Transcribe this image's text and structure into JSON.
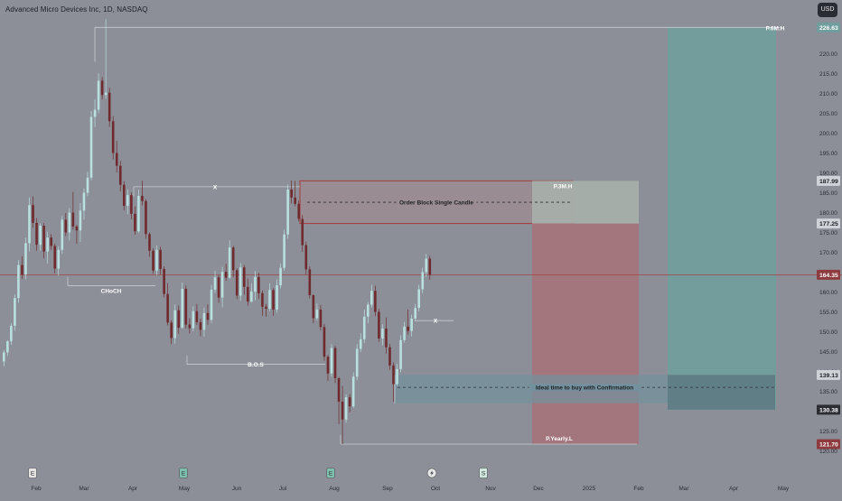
{
  "header": {
    "title": "Advanced Micro Devices Inc, 1D, NASDAQ",
    "currency_button": "USD"
  },
  "colors": {
    "background": "#8c8f98",
    "candle_up": "#b8e0df",
    "candle_down": "#6e2a2c",
    "order_block_fill": "#9a8d92",
    "order_block_border": "#a73a3a",
    "stop_zone": "#a5737a",
    "target_zone": "#6f9e9c",
    "gray_zone": "#a7afa9",
    "buy_zone": "#74909c",
    "level_line": "#c4c8cc",
    "price_line": "#a14242"
  },
  "chart_data": {
    "type": "candlestick",
    "symbol": "Advanced Micro Devices Inc, 1D, NASDAQ",
    "currency": "USD",
    "ylim": [
      113,
      232
    ],
    "y_ticks": [
      120,
      125,
      130,
      135,
      140,
      145,
      150,
      155,
      160,
      165,
      170,
      175,
      180,
      185,
      190,
      195,
      200,
      205,
      210,
      215,
      220,
      230
    ],
    "x_ticks": [
      "Feb",
      "Mar",
      "Apr",
      "May",
      "Jun",
      "Jul",
      "Aug",
      "Sep",
      "Oct",
      "Nov",
      "Dec",
      "2025",
      "Feb",
      "Mar",
      "Apr",
      "May"
    ],
    "price_tags": [
      {
        "value": "226.63",
        "style": "teal"
      },
      {
        "value": "187.99",
        "style": "light"
      },
      {
        "value": "177.25",
        "style": "light"
      },
      {
        "value": "164.35",
        "style": "red"
      },
      {
        "value": "139.13",
        "style": "light"
      },
      {
        "value": "130.38",
        "style": "dark"
      },
      {
        "value": "121.70",
        "style": "red"
      }
    ],
    "annotations": [
      {
        "label": "P.6M.H",
        "value": 226.63
      },
      {
        "label": "P.3M.H",
        "value": 187.99
      },
      {
        "label": "Order Block Single Candle",
        "value": 182.6
      },
      {
        "label": "X",
        "value": 186.5
      },
      {
        "label": "CHoCH",
        "value": 161.6
      },
      {
        "label": "B.O.S",
        "value": 141.8
      },
      {
        "label": "X",
        "value": 152.8
      },
      {
        "label": "Ideal time to buy with Confirmation",
        "value": 136.0
      },
      {
        "label": "P.Yearly.L",
        "value": 121.7
      }
    ],
    "zones": [
      {
        "name": "order-block",
        "from": 177.25,
        "to": 187.99
      },
      {
        "name": "stop-loss",
        "from": 121.7,
        "to": 177.25
      },
      {
        "name": "take-profit",
        "from": 130.38,
        "to": 226.63
      },
      {
        "name": "entry",
        "from": 132.0,
        "to": 139.13
      }
    ],
    "events_icons": [
      "earnings-icon",
      "dividend-icon",
      "dividend-icon",
      "flash-icon",
      "split-icon"
    ],
    "candles": [
      [
        142.5,
        145.4,
        141.3,
        144.8
      ],
      [
        144.8,
        147.9,
        143.9,
        147.6
      ],
      [
        147.6,
        152.2,
        146.7,
        151.5
      ],
      [
        151.5,
        159.4,
        150.2,
        158.5
      ],
      [
        158.5,
        168.1,
        157.3,
        166.8
      ],
      [
        166.8,
        169.0,
        163.3,
        164.4
      ],
      [
        164.4,
        173.7,
        163.2,
        172.3
      ],
      [
        172.3,
        183.8,
        170.2,
        181.9
      ],
      [
        181.9,
        184.1,
        176.2,
        177.4
      ],
      [
        177.4,
        178.6,
        170.4,
        171.9
      ],
      [
        171.9,
        177.3,
        170.4,
        176.7
      ],
      [
        176.7,
        177.4,
        168.5,
        170.2
      ],
      [
        170.2,
        175.2,
        167.2,
        173.7
      ],
      [
        173.7,
        174.6,
        170.6,
        171.6
      ],
      [
        171.6,
        172.2,
        164.7,
        165.9
      ],
      [
        165.9,
        171.5,
        164.1,
        170.6
      ],
      [
        170.6,
        179.1,
        169.6,
        178.2
      ],
      [
        178.2,
        179.9,
        174.1,
        175.0
      ],
      [
        175.0,
        181.1,
        173.0,
        180.0
      ],
      [
        180.0,
        185.2,
        175.7,
        176.5
      ],
      [
        176.5,
        176.9,
        172.2,
        175.5
      ],
      [
        175.5,
        182.4,
        172.6,
        180.5
      ],
      [
        180.5,
        186.1,
        178.2,
        185.0
      ],
      [
        185.0,
        190.3,
        184.1,
        188.8
      ],
      [
        188.8,
        205.6,
        188.1,
        204.1
      ],
      [
        204.1,
        208.5,
        201.5,
        205.9
      ],
      [
        205.9,
        215.0,
        205.0,
        213.2
      ],
      [
        213.2,
        214.1,
        208.5,
        209.6
      ],
      [
        209.6,
        228.7,
        208.7,
        210.2
      ],
      [
        210.2,
        211.4,
        201.6,
        203.0
      ],
      [
        203.0,
        204.3,
        193.4,
        195.0
      ],
      [
        195.0,
        198.1,
        190.1,
        191.8
      ],
      [
        191.8,
        193.0,
        185.3,
        187.0
      ],
      [
        187.0,
        187.9,
        180.6,
        181.7
      ],
      [
        181.7,
        185.8,
        179.6,
        184.4
      ],
      [
        184.4,
        185.1,
        178.3,
        179.7
      ],
      [
        179.7,
        181.6,
        174.4,
        175.3
      ],
      [
        175.3,
        185.8,
        175.0,
        184.2
      ],
      [
        184.2,
        188.0,
        181.8,
        182.9
      ],
      [
        182.9,
        183.4,
        173.4,
        174.6
      ],
      [
        174.6,
        175.0,
        168.9,
        170.4
      ],
      [
        170.4,
        171.0,
        164.6,
        165.4
      ],
      [
        165.4,
        171.7,
        164.3,
        170.6
      ],
      [
        170.6,
        171.4,
        164.5,
        165.8
      ],
      [
        165.8,
        166.5,
        158.6,
        159.5
      ],
      [
        159.5,
        162.3,
        151.6,
        152.3
      ],
      [
        152.3,
        152.9,
        146.9,
        148.4
      ],
      [
        148.4,
        156.9,
        147.0,
        155.4
      ],
      [
        155.4,
        156.6,
        149.5,
        151.0
      ],
      [
        151.0,
        162.4,
        150.7,
        160.8
      ],
      [
        160.8,
        161.6,
        150.8,
        151.8
      ],
      [
        151.8,
        153.4,
        149.6,
        150.9
      ],
      [
        150.9,
        156.4,
        150.1,
        155.2
      ],
      [
        155.2,
        157.0,
        151.7,
        152.4
      ],
      [
        152.4,
        153.3,
        148.9,
        150.5
      ],
      [
        150.5,
        156.1,
        148.8,
        154.7
      ],
      [
        154.7,
        156.9,
        151.8,
        153.0
      ],
      [
        153.0,
        161.8,
        152.2,
        160.6
      ],
      [
        160.6,
        165.3,
        159.8,
        163.7
      ],
      [
        163.7,
        164.2,
        157.3,
        158.6
      ],
      [
        158.6,
        166.3,
        156.2,
        165.1
      ],
      [
        165.1,
        167.1,
        162.8,
        163.6
      ],
      [
        163.6,
        173.0,
        163.3,
        171.2
      ],
      [
        171.2,
        171.6,
        163.7,
        165.5
      ],
      [
        165.5,
        166.0,
        158.2,
        159.1
      ],
      [
        159.1,
        167.3,
        157.8,
        166.2
      ],
      [
        166.2,
        166.8,
        159.3,
        161.3
      ],
      [
        161.3,
        163.4,
        156.6,
        157.6
      ],
      [
        157.6,
        162.1,
        157.3,
        160.1
      ],
      [
        160.1,
        165.3,
        157.9,
        163.8
      ],
      [
        163.8,
        164.8,
        158.2,
        159.7
      ],
      [
        159.7,
        160.4,
        154.0,
        156.3
      ],
      [
        156.3,
        157.0,
        153.8,
        155.8
      ],
      [
        155.8,
        162.2,
        155.2,
        160.5
      ],
      [
        160.5,
        161.0,
        154.0,
        155.6
      ],
      [
        155.6,
        163.2,
        154.8,
        161.7
      ],
      [
        161.7,
        167.2,
        160.9,
        166.1
      ],
      [
        166.1,
        175.7,
        165.4,
        174.5
      ],
      [
        174.5,
        187.1,
        173.4,
        185.8
      ],
      [
        185.8,
        188.1,
        182.3,
        183.8
      ],
      [
        183.8,
        188.0,
        181.6,
        182.2
      ],
      [
        182.2,
        183.0,
        177.8,
        178.4
      ],
      [
        178.4,
        179.4,
        170.1,
        171.8
      ],
      [
        171.8,
        172.7,
        164.4,
        165.7
      ],
      [
        165.7,
        166.5,
        158.4,
        159.2
      ],
      [
        159.2,
        159.4,
        152.1,
        153.4
      ],
      [
        153.4,
        157.1,
        152.8,
        155.6
      ],
      [
        155.6,
        156.8,
        150.3,
        151.2
      ],
      [
        151.2,
        152.0,
        142.7,
        143.7
      ],
      [
        143.7,
        144.2,
        137.6,
        139.5
      ],
      [
        139.5,
        146.9,
        138.7,
        145.9
      ],
      [
        145.9,
        146.5,
        137.1,
        138.3
      ],
      [
        138.3,
        138.6,
        126.8,
        132.4
      ],
      [
        132.4,
        136.4,
        121.7,
        127.9
      ],
      [
        127.9,
        134.2,
        127.1,
        133.5
      ],
      [
        133.5,
        134.3,
        129.7,
        131.2
      ],
      [
        131.2,
        139.8,
        130.8,
        138.7
      ],
      [
        138.7,
        146.9,
        137.8,
        145.7
      ],
      [
        145.7,
        149.6,
        144.9,
        148.1
      ],
      [
        148.1,
        155.6,
        147.2,
        153.8
      ],
      [
        153.8,
        157.5,
        152.2,
        156.8
      ],
      [
        156.8,
        161.8,
        156.1,
        160.3
      ],
      [
        160.3,
        161.6,
        153.9,
        155.0
      ],
      [
        155.0,
        155.8,
        147.5,
        148.3
      ],
      [
        148.3,
        151.9,
        146.6,
        150.8
      ],
      [
        150.8,
        153.6,
        144.5,
        146.1
      ],
      [
        146.1,
        146.9,
        140.4,
        141.5
      ],
      [
        141.5,
        142.3,
        132.4,
        136.8
      ],
      [
        136.8,
        141.9,
        136.4,
        140.6
      ],
      [
        140.6,
        149.1,
        139.8,
        147.9
      ],
      [
        147.9,
        152.5,
        147.3,
        151.3
      ],
      [
        151.3,
        155.6,
        149.3,
        150.2
      ],
      [
        150.2,
        154.3,
        148.8,
        153.3
      ],
      [
        153.3,
        157.0,
        152.6,
        156.0
      ],
      [
        156.0,
        161.8,
        155.1,
        160.7
      ],
      [
        160.7,
        166.1,
        159.7,
        165.0
      ],
      [
        165.0,
        169.6,
        163.8,
        168.4
      ],
      [
        168.4,
        169.1,
        163.1,
        164.35
      ]
    ]
  }
}
